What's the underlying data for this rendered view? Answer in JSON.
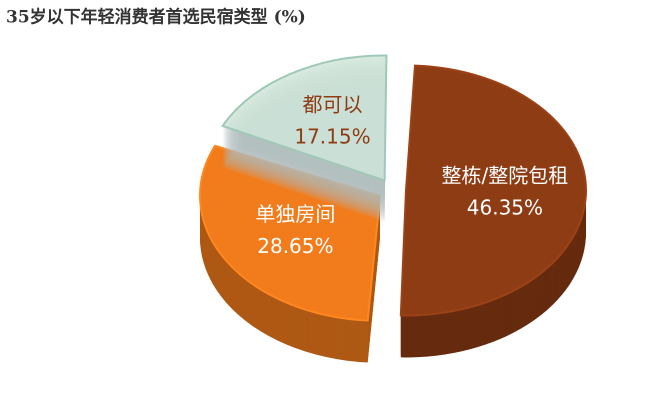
{
  "chart_data": {
    "type": "pie",
    "title": "35岁以下年轻消费者首选民宿类型 (%)",
    "categories": [
      "整栋/整院包租",
      "单独房间",
      "都可以"
    ],
    "values": [
      46.35,
      28.65,
      17.15
    ],
    "value_labels": [
      "46.35%",
      "28.65%",
      "17.15%"
    ],
    "colors": [
      "#8e3c14",
      "#f27b1c",
      "#cfe6da"
    ]
  }
}
